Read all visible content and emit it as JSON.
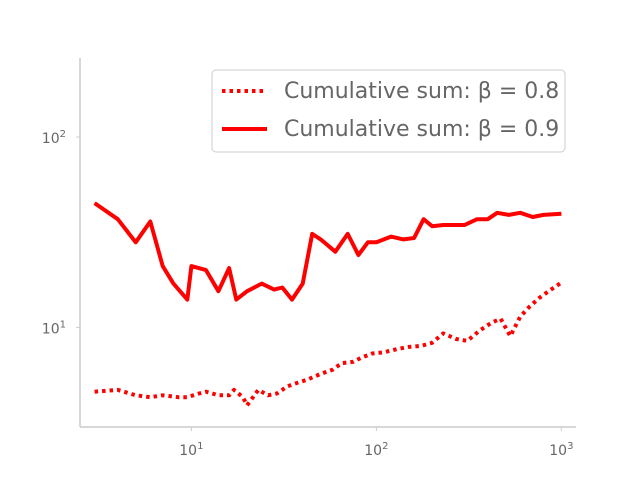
{
  "chart_data": {
    "type": "line",
    "x_scale": "log",
    "y_scale": "log",
    "xlim": [
      2.5,
      1200
    ],
    "ylim": [
      3.0,
      260
    ],
    "grid": false,
    "legend_placement": "top-right",
    "x_ticks": [
      {
        "value": 10,
        "base": "10",
        "exp": "1"
      },
      {
        "value": 100,
        "base": "10",
        "exp": "2"
      },
      {
        "value": 1000,
        "base": "10",
        "exp": "3"
      }
    ],
    "y_ticks": [
      {
        "value": 10,
        "base": "10",
        "exp": "1"
      },
      {
        "value": 100,
        "base": "10",
        "exp": "2"
      }
    ],
    "series": [
      {
        "name": "Cumulative sum: β = 0.8",
        "color": "#ff0000",
        "style": "dotted",
        "x": [
          3,
          4,
          5,
          6,
          7,
          8.5,
          9.5,
          11,
          12,
          14,
          16,
          17,
          19,
          20,
          23,
          26,
          29,
          33,
          37,
          42,
          50,
          58,
          65,
          75,
          82,
          95,
          110,
          130,
          150,
          175,
          200,
          230,
          270,
          310,
          360,
          420,
          470,
          530,
          600,
          670,
          760,
          870,
          1000
        ],
        "y": [
          4.6,
          4.7,
          4.4,
          4.3,
          4.4,
          4.3,
          4.3,
          4.5,
          4.6,
          4.4,
          4.4,
          4.7,
          4.3,
          3.9,
          4.7,
          4.4,
          4.5,
          4.9,
          5.1,
          5.3,
          5.7,
          6.0,
          6.5,
          6.6,
          6.9,
          7.3,
          7.4,
          7.7,
          7.9,
          8.0,
          8.3,
          9.3,
          8.7,
          8.5,
          9.6,
          10.6,
          11.1,
          9.0,
          11.4,
          12.8,
          14.3,
          15.7,
          17.2
        ]
      },
      {
        "name": "Cumulative sum: β = 0.9",
        "color": "#ff0000",
        "style": "solid",
        "x": [
          3,
          4,
          5,
          6,
          7,
          8,
          9.5,
          10,
          12,
          14,
          16,
          17.5,
          20,
          24,
          28,
          31,
          35,
          40,
          45,
          50,
          60,
          70,
          80,
          90,
          100,
          120,
          140,
          160,
          180,
          200,
          230,
          270,
          300,
          350,
          400,
          450,
          520,
          600,
          700,
          800,
          1000
        ],
        "y": [
          45,
          37,
          28,
          36,
          21,
          17,
          14,
          21,
          20,
          15.5,
          20.5,
          14,
          15.5,
          17,
          15.8,
          16.2,
          14,
          17,
          31,
          29,
          25,
          31,
          24,
          28,
          28,
          30,
          29,
          29.5,
          37,
          34,
          34.5,
          34.5,
          34.5,
          37,
          37,
          40,
          39,
          40,
          38,
          39,
          39.5
        ]
      }
    ]
  }
}
